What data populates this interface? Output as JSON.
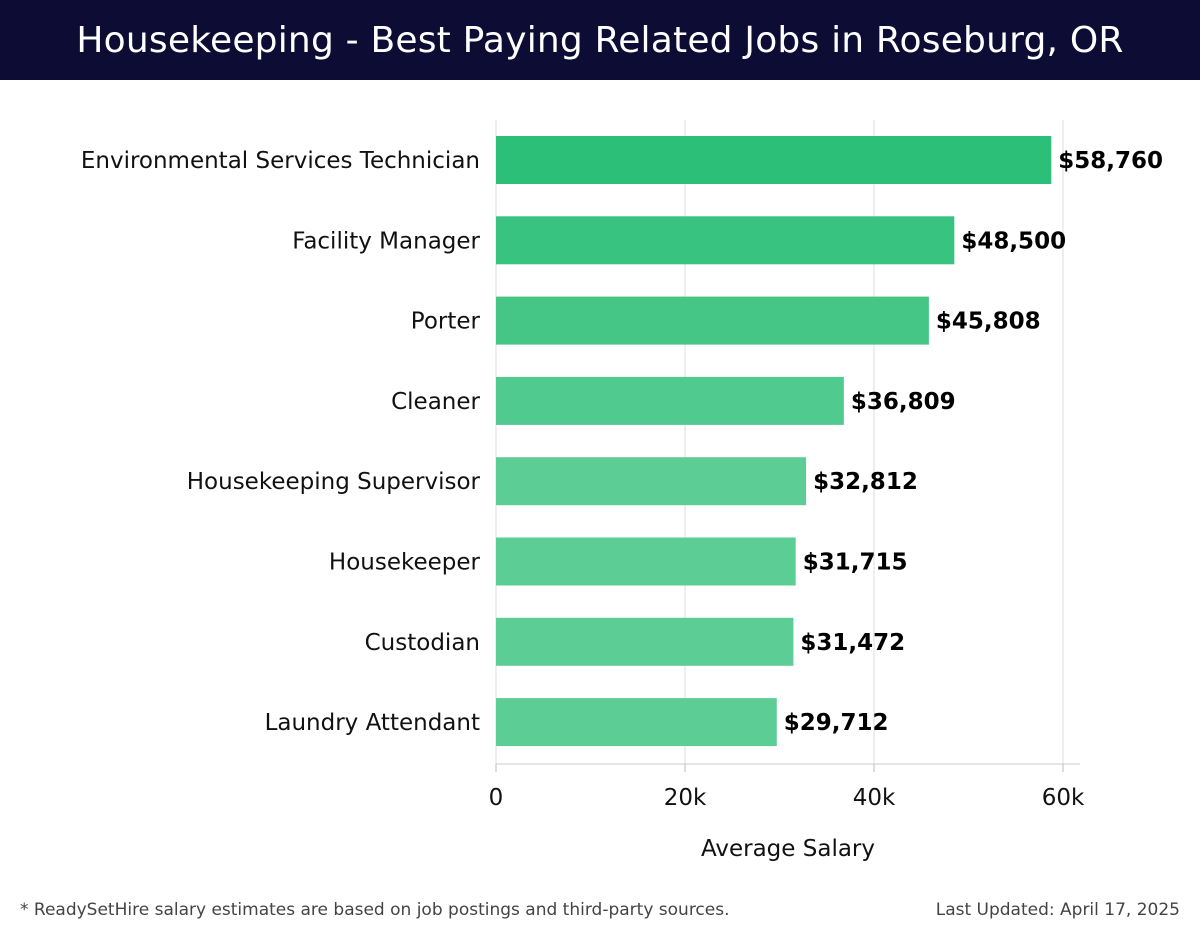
{
  "header": {
    "title": "Housekeeping - Best Paying Related Jobs in Roseburg, OR"
  },
  "chart_data": {
    "type": "bar",
    "orientation": "horizontal",
    "categories": [
      "Environmental Services Technician",
      "Facility Manager",
      "Porter",
      "Cleaner",
      "Housekeeping Supervisor",
      "Housekeeper",
      "Custodian",
      "Laundry Attendant"
    ],
    "values": [
      58760,
      48500,
      45808,
      36809,
      32812,
      31715,
      31472,
      29712
    ],
    "value_labels": [
      "$58,760",
      "$48,500",
      "$45,808",
      "$36,809",
      "$32,812",
      "$31,715",
      "$31,472",
      "$29,712"
    ],
    "xlabel": "Average Salary",
    "ylabel": "",
    "xlim": [
      0,
      62000
    ],
    "ticks": [
      0,
      20000,
      40000,
      60000
    ],
    "tick_labels": [
      "0",
      "20k",
      "40k",
      "60k"
    ],
    "grid": true,
    "bar_color_top": "#2cbf78",
    "bar_color_bottom": "#5dcd96"
  },
  "footer": {
    "note": "* ReadySetHire salary estimates are based on job postings and third-party sources.",
    "updated": "Last Updated: April 17, 2025"
  },
  "colors": {
    "header_bg": "#0c0c35",
    "grid": "#dddddd"
  }
}
